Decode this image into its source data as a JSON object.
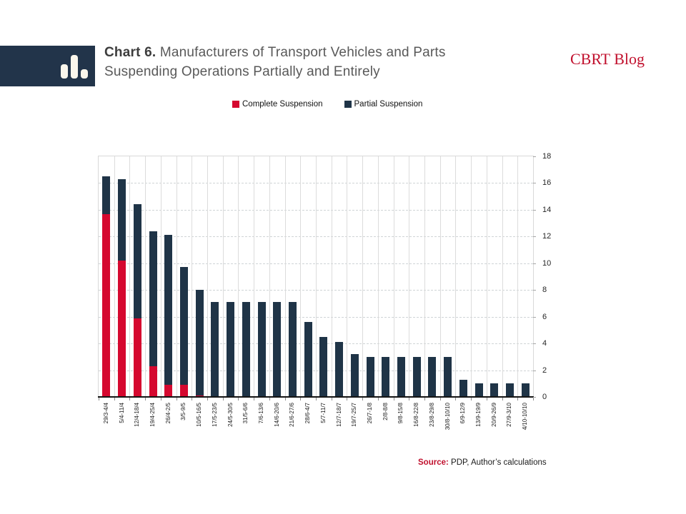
{
  "header": {
    "logo_icon": "bar-chart-icon",
    "title_bold": "Chart 6.",
    "title_line1": "Manufacturers of Transport Vehicles and Parts",
    "title_line2": "Suspending Operations Partially and Entirely",
    "brand": "CBRT Blog"
  },
  "legend": {
    "items": [
      {
        "label": "Complete Suspension",
        "color": "#d5082f"
      },
      {
        "label": "Partial Suspension",
        "color": "#1f3447"
      }
    ]
  },
  "source": {
    "prefix": "Source:",
    "text": "PDP, Author’s calculations"
  },
  "colors": {
    "brand_red": "#c1112e",
    "bar_red": "#d5082f",
    "navy": "#1f3447",
    "logo_background": "#22344a",
    "gridline": "#d9d9d9",
    "title_gray": "#595959"
  },
  "chart_data": {
    "type": "bar",
    "stacked": true,
    "title": "Chart 6. Manufacturers of Transport Vehicles and Parts Suspending Operations Partially and Entirely",
    "categories": [
      "29/3-4/4",
      "5/4-11/4",
      "12/4-18/4",
      "19/4-25/4",
      "26/4-2/5",
      "3/5-9/5",
      "10/5-16/5",
      "17/5-23/5",
      "24/5-30/5",
      "31/5-6/6",
      "7/6-13/6",
      "14/6-20/6",
      "21/6-27/6",
      "28/6-4/7",
      "5/7-11/7",
      "12/7-18/7",
      "19/7-25/7",
      "26/7-1/8",
      "2/8-8/8",
      "9/8-15/8",
      "16/8-22/8",
      "23/8-29/8",
      "30/8-10/10",
      "6/9-12/9",
      "13/9-19/9",
      "20/9-26/9",
      "27/9-3/10",
      "4/10-10/10"
    ],
    "series": [
      {
        "name": "Complete Suspension",
        "color": "#d5082f",
        "values": [
          13.7,
          10.2,
          5.9,
          2.3,
          0.9,
          0.9,
          0.1,
          0,
          0,
          0,
          0,
          0,
          0,
          0,
          0,
          0,
          0,
          0,
          0,
          0,
          0,
          0,
          0,
          0,
          0,
          0,
          0,
          0
        ]
      },
      {
        "name": "Partial Suspension",
        "color": "#1f3447",
        "values": [
          2.8,
          6.1,
          8.5,
          10.1,
          11.2,
          8.8,
          7.9,
          7.1,
          7.1,
          7.1,
          7.1,
          7.1,
          7.1,
          5.6,
          4.5,
          4.1,
          3.2,
          3.0,
          3.0,
          3.0,
          3.0,
          3.0,
          3.0,
          1.3,
          1.0,
          1.0,
          1.0,
          1.0
        ]
      }
    ],
    "ylabel": "",
    "xlabel": "",
    "ylim": [
      0,
      18
    ],
    "ytick_step": 2,
    "yaxis_side": "right",
    "xlabel_rotation": 90,
    "grid": true,
    "legend_position": "top"
  }
}
